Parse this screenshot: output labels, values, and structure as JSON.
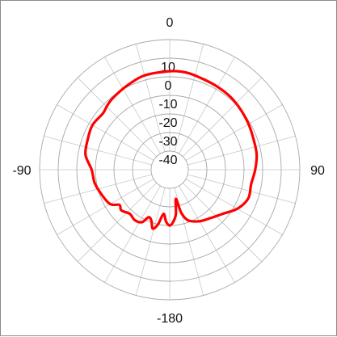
{
  "chart_data": {
    "type": "polar-line",
    "angle_unit": "degrees",
    "angle_labels": [
      {
        "angle": 0,
        "text": "0"
      },
      {
        "angle": 90,
        "text": "90"
      },
      {
        "angle": -90,
        "text": "-90"
      },
      {
        "angle": 180,
        "text": "-180"
      }
    ],
    "radial_range": [
      -50,
      20
    ],
    "rings": [
      {
        "value": 10,
        "text": "10"
      },
      {
        "value": 0,
        "text": "0"
      },
      {
        "value": -10,
        "text": "-10"
      },
      {
        "value": -20,
        "text": "-20"
      },
      {
        "value": -30,
        "text": "-30"
      },
      {
        "value": -40,
        "text": "-40"
      }
    ],
    "outer_ring": 20,
    "spokes_every_deg": 15,
    "grid": true,
    "series": [
      {
        "color": "#ff0000",
        "points": [
          {
            "angle": 0,
            "value": 3
          },
          {
            "angle": 10,
            "value": 3
          },
          {
            "angle": 20,
            "value": 2
          },
          {
            "angle": 30,
            "value": 1.5
          },
          {
            "angle": 40,
            "value": 1
          },
          {
            "angle": 50,
            "value": 0
          },
          {
            "angle": 60,
            "value": -1
          },
          {
            "angle": 70,
            "value": -2
          },
          {
            "angle": 80,
            "value": -2.5
          },
          {
            "angle": 90,
            "value": -4
          },
          {
            "angle": 100,
            "value": -5.5
          },
          {
            "angle": 110,
            "value": -5
          },
          {
            "angle": 120,
            "value": -8
          },
          {
            "angle": 130,
            "value": -13
          },
          {
            "angle": 140,
            "value": -16
          },
          {
            "angle": 150,
            "value": -18
          },
          {
            "angle": 160,
            "value": -21
          },
          {
            "angle": 165,
            "value": -26
          },
          {
            "angle": 168,
            "value": -34
          },
          {
            "angle": 172,
            "value": -26
          },
          {
            "angle": 176,
            "value": -22
          },
          {
            "angle": 180,
            "value": -20
          },
          {
            "angle": 184,
            "value": -22
          },
          {
            "angle": 188,
            "value": -26
          },
          {
            "angle": 192,
            "value": -20
          },
          {
            "angle": 196,
            "value": -17
          },
          {
            "angle": 200,
            "value": -21
          },
          {
            "angle": 204,
            "value": -22
          },
          {
            "angle": 208,
            "value": -18
          },
          {
            "angle": 215,
            "value": -17
          },
          {
            "angle": 222,
            "value": -18
          },
          {
            "angle": 230,
            "value": -16
          },
          {
            "angle": 235,
            "value": -17
          },
          {
            "angle": 240,
            "value": -13
          },
          {
            "angle": 250,
            "value": -11
          },
          {
            "angle": 260,
            "value": -9
          },
          {
            "angle": 270,
            "value": -8
          },
          {
            "angle": 280,
            "value": -4
          },
          {
            "angle": 290,
            "value": -3
          },
          {
            "angle": 300,
            "value": -2
          },
          {
            "angle": 310,
            "value": -3
          },
          {
            "angle": 315,
            "value": -2
          },
          {
            "angle": 320,
            "value": -1
          },
          {
            "angle": 328,
            "value": 0
          },
          {
            "angle": 335,
            "value": 1
          },
          {
            "angle": 345,
            "value": 2.5
          },
          {
            "angle": 360,
            "value": 3
          }
        ]
      }
    ]
  }
}
